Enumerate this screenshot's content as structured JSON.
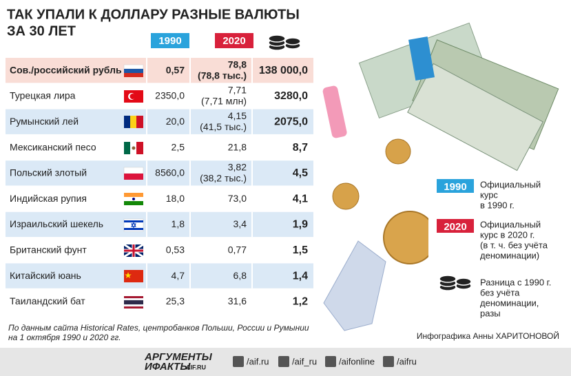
{
  "header": {
    "title_lines": [
      "ТАК УПАЛИ К ДОЛЛАРУ РАЗНЫЕ ВАЛЮТЫ",
      "ЗА 30 ЛЕТ"
    ]
  },
  "table": {
    "columns": [
      "1990",
      "2020"
    ],
    "rows": [
      {
        "currency": "Сов./российский рубль",
        "rate_1990": "0,57",
        "rate_2020": "78,8",
        "rate_2020_note": "(78,8 тыс.)",
        "ratio": "138 000,0"
      },
      {
        "currency": "Турецкая лира",
        "rate_1990": "2350,0",
        "rate_2020": "7,71",
        "rate_2020_note": "(7,71 млн)",
        "ratio": "3280,0"
      },
      {
        "currency": "Румынский лей",
        "rate_1990": "20,0",
        "rate_2020": "4,15",
        "rate_2020_note": "(41,5 тыс.)",
        "ratio": "2075,0"
      },
      {
        "currency": "Мексиканский песо",
        "rate_1990": "2,5",
        "rate_2020": "21,8",
        "ratio": "8,7"
      },
      {
        "currency": "Польский злотый",
        "rate_1990": "8560,0",
        "rate_2020": "3,82",
        "rate_2020_note": "(38,2 тыс.)",
        "ratio": "4,5"
      },
      {
        "currency": "Индийская рупия",
        "rate_1990": "18,0",
        "rate_2020": "73,0",
        "ratio": "4,1"
      },
      {
        "currency": "Израильский шекель",
        "rate_1990": "1,8",
        "rate_2020": "3,4",
        "ratio": "1,9"
      },
      {
        "currency": "Британский фунт",
        "rate_1990": "0,53",
        "rate_2020": "0,77",
        "ratio": "1,5"
      },
      {
        "currency": "Китайский юань",
        "rate_1990": "4,7",
        "rate_2020": "6,8",
        "ratio": "1,4"
      },
      {
        "currency": "Таиландский бат",
        "rate_1990": "25,3",
        "rate_2020": "31,6",
        "ratio": "1,2"
      }
    ]
  },
  "legend": {
    "items": [
      {
        "badge": "1990",
        "lines": [
          "Официальный",
          "курс",
          "в 1990 г."
        ]
      },
      {
        "badge": "2020",
        "lines": [
          "Официальный",
          "курс в 2020 г.",
          "(в т. ч. без учёта",
          "деноминации)"
        ]
      },
      {
        "lines": [
          "Разница с 1990 г.",
          "без учёта",
          "деноминации,",
          "разы"
        ]
      }
    ]
  },
  "source_lines": [
    "По данным сайта Historical Rates, центробанков Польши, России и Румынии",
    "на 1 октября 1990 и 2020 гг."
  ],
  "credit": "Инфографика Анны ХАРИТОНОВОЙ",
  "footer": {
    "logo_lines": [
      "АРГУМЕНТЫ",
      "ИФАКТЫ"
    ],
    "logo_site": "AIF.RU",
    "links": [
      "/aif.ru",
      "/aif_ru",
      "/aifonline",
      "/aifru"
    ]
  }
}
